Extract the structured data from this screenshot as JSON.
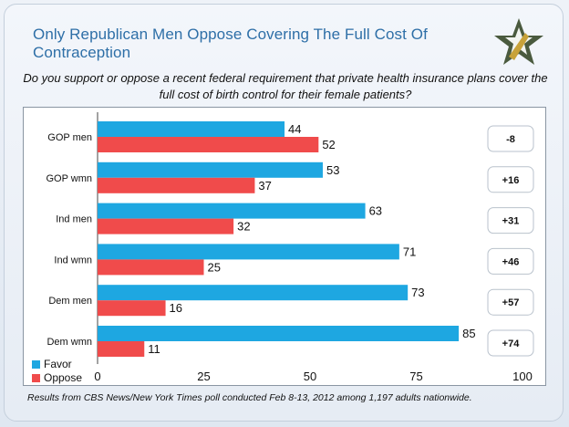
{
  "title": "Only Republican Men Oppose Covering The Full Cost Of Contraception",
  "logo_icon": "star-logo-icon",
  "question": "Do you support or oppose a recent federal requirement that private health insurance plans cover the full cost of birth control for their female patients?",
  "footnote": "Results from  CBS News/New York Times poll conducted Feb 8-13, 2012 among 1,197 adults nationwide.",
  "colors": {
    "favor": "#1ea7e1",
    "oppose": "#f04b4b",
    "title": "#2e6fa7"
  },
  "chart_data": {
    "type": "bar",
    "orientation": "horizontal",
    "categories": [
      "GOP men",
      "GOP wmn",
      "Ind men",
      "Ind wmn",
      "Dem men",
      "Dem wmn"
    ],
    "series": [
      {
        "name": "Favor",
        "values": [
          44,
          53,
          63,
          71,
          73,
          85
        ]
      },
      {
        "name": "Oppose",
        "values": [
          52,
          37,
          32,
          25,
          16,
          11
        ]
      }
    ],
    "net": [
      "-8",
      "+16",
      "+31",
      "+46",
      "+57",
      "+74"
    ],
    "xlim": [
      0,
      100
    ],
    "xticks": [
      0,
      25,
      50,
      75,
      100
    ],
    "legend_position": "bottom-left",
    "grid": false
  }
}
